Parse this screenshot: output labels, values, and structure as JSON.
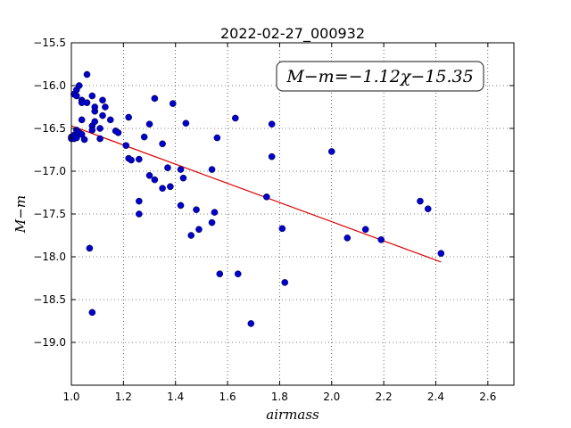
{
  "chart_data": {
    "type": "scatter",
    "title": "2022-02-27_000932",
    "xlabel": "airmass",
    "ylabel": "M−m",
    "xlim": [
      1.0,
      2.7
    ],
    "ylim": [
      -15.5,
      -19.5
    ],
    "y_inverted": true,
    "grid": true,
    "x_ticks": [
      "1.0",
      "1.2",
      "1.4",
      "1.6",
      "1.8",
      "2.0",
      "2.2",
      "2.4",
      "2.6"
    ],
    "y_ticks": [
      "−15.5",
      "−16.0",
      "−16.5",
      "−17.0",
      "−17.5",
      "−18.0",
      "−18.5",
      "−19.0"
    ],
    "annotation": "M−m=−1.12χ−15.35",
    "annotation_placement": "top-right",
    "colors": {
      "points": "#0000cc",
      "fit": "#dd0000"
    },
    "fit": {
      "slope": -1.12,
      "intercept": -15.35,
      "x_range": [
        1.0,
        2.42
      ]
    },
    "points": [
      [
        1.0,
        -16.6
      ],
      [
        1.0,
        -16.62
      ],
      [
        1.01,
        -16.62
      ],
      [
        1.01,
        -16.58
      ],
      [
        1.01,
        -16.1
      ],
      [
        1.02,
        -16.05
      ],
      [
        1.02,
        -16.12
      ],
      [
        1.02,
        -16.52
      ],
      [
        1.02,
        -16.61
      ],
      [
        1.03,
        -16.0
      ],
      [
        1.03,
        -16.55
      ],
      [
        1.04,
        -16.17
      ],
      [
        1.04,
        -16.2
      ],
      [
        1.04,
        -16.4
      ],
      [
        1.04,
        -16.57
      ],
      [
        1.05,
        -16.63
      ],
      [
        1.06,
        -15.87
      ],
      [
        1.06,
        -16.2
      ],
      [
        1.07,
        -17.9
      ],
      [
        1.08,
        -16.12
      ],
      [
        1.08,
        -16.47
      ],
      [
        1.08,
        -16.52
      ],
      [
        1.08,
        -18.65
      ],
      [
        1.09,
        -16.3
      ],
      [
        1.09,
        -16.25
      ],
      [
        1.09,
        -16.42
      ],
      [
        1.11,
        -16.5
      ],
      [
        1.11,
        -16.62
      ],
      [
        1.12,
        -16.17
      ],
      [
        1.12,
        -16.35
      ],
      [
        1.13,
        -16.25
      ],
      [
        1.15,
        -16.4
      ],
      [
        1.17,
        -16.53
      ],
      [
        1.18,
        -16.55
      ],
      [
        1.21,
        -16.7
      ],
      [
        1.22,
        -16.37
      ],
      [
        1.22,
        -16.85
      ],
      [
        1.23,
        -16.87
      ],
      [
        1.26,
        -16.86
      ],
      [
        1.26,
        -17.35
      ],
      [
        1.26,
        -17.5
      ],
      [
        1.28,
        -16.6
      ],
      [
        1.3,
        -16.45
      ],
      [
        1.3,
        -17.05
      ],
      [
        1.32,
        -16.15
      ],
      [
        1.32,
        -17.1
      ],
      [
        1.35,
        -16.68
      ],
      [
        1.35,
        -17.2
      ],
      [
        1.37,
        -16.96
      ],
      [
        1.38,
        -17.18
      ],
      [
        1.39,
        -16.21
      ],
      [
        1.42,
        -16.98
      ],
      [
        1.42,
        -17.4
      ],
      [
        1.43,
        -17.08
      ],
      [
        1.44,
        -16.44
      ],
      [
        1.46,
        -17.75
      ],
      [
        1.48,
        -17.45
      ],
      [
        1.49,
        -17.68
      ],
      [
        1.54,
        -16.98
      ],
      [
        1.54,
        -17.6
      ],
      [
        1.55,
        -17.48
      ],
      [
        1.56,
        -16.61
      ],
      [
        1.57,
        -18.2
      ],
      [
        1.63,
        -16.38
      ],
      [
        1.64,
        -18.2
      ],
      [
        1.69,
        -18.78
      ],
      [
        1.75,
        -17.3
      ],
      [
        1.77,
        -16.45
      ],
      [
        1.77,
        -16.83
      ],
      [
        1.81,
        -17.67
      ],
      [
        1.82,
        -18.3
      ],
      [
        2.0,
        -16.77
      ],
      [
        2.06,
        -17.78
      ],
      [
        2.13,
        -17.68
      ],
      [
        2.19,
        -17.8
      ],
      [
        2.34,
        -17.35
      ],
      [
        2.37,
        -17.44
      ],
      [
        2.42,
        -17.96
      ]
    ]
  }
}
